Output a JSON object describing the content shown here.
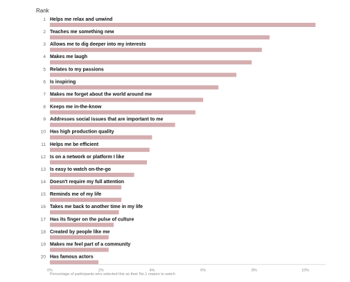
{
  "chart_data": {
    "type": "bar",
    "orientation": "horizontal",
    "rank_header": "Rank",
    "xlabel": "Percentage of participants who selected this as their No.1 reason to watch",
    "xlim": [
      0,
      10.8
    ],
    "x_ticks": [
      0,
      2,
      4,
      6,
      8,
      10
    ],
    "x_tick_labels": [
      "0%",
      "2%",
      "4%",
      "6%",
      "8%",
      "10%"
    ],
    "grid": false,
    "bar_color": "#d4aeb0",
    "items": [
      {
        "rank": "1",
        "label": "Helps me relax and unwind",
        "value": 10.4
      },
      {
        "rank": "2",
        "label": "Teaches me something new",
        "value": 8.6
      },
      {
        "rank": "3",
        "label": "Allows me to dig deeper into my interests",
        "value": 8.3
      },
      {
        "rank": "4",
        "label": "Makes me laugh",
        "value": 7.9
      },
      {
        "rank": "5",
        "label": "Relates to my passions",
        "value": 7.3
      },
      {
        "rank": "6",
        "label": "Is inspiring",
        "value": 6.6
      },
      {
        "rank": "7",
        "label": "Makes me forget about the world around me",
        "value": 6.0
      },
      {
        "rank": "8",
        "label": "Keeps me in-the-know",
        "value": 5.7
      },
      {
        "rank": "9",
        "label": "Addresses social issues that are important to me",
        "value": 4.9
      },
      {
        "rank": "10",
        "label": "Has high production quality",
        "value": 4.0
      },
      {
        "rank": "11",
        "label": "Helps me be efficient",
        "value": 3.9
      },
      {
        "rank": "12",
        "label": "Is on a network or platform I like",
        "value": 3.8
      },
      {
        "rank": "13",
        "label": "Is easy to watch on-the-go",
        "value": 3.3
      },
      {
        "rank": "14",
        "label": "Doesn't require my full attention",
        "value": 2.8
      },
      {
        "rank": "15",
        "label": "Reminds me of my life",
        "value": 2.8
      },
      {
        "rank": "16",
        "label": "Takes me back to another time in my life",
        "value": 2.7
      },
      {
        "rank": "17",
        "label": "Has its finger on the pulse of culture",
        "value": 2.5
      },
      {
        "rank": "18",
        "label": "Created by people like me",
        "value": 2.3
      },
      {
        "rank": "19",
        "label": "Makes me feel part of a community",
        "value": 2.3
      },
      {
        "rank": "20",
        "label": "Has famous actors",
        "value": 1.9
      }
    ]
  }
}
